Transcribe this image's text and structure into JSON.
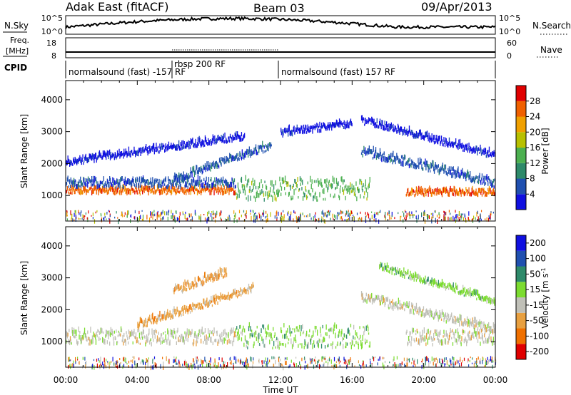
{
  "header": {
    "station": "Adak East (fitACF)",
    "beam": "Beam 03",
    "date": "09/Apr/2013"
  },
  "noise_panel": {
    "left_label": "N.Sky",
    "right_label": "N.Search",
    "left_ticks": [
      "10^5",
      "10^0"
    ],
    "right_ticks": [
      "10^5",
      "10^0"
    ]
  },
  "freq_panel": {
    "left_label_line1": "Freq.",
    "left_label_line2": "[MHz]",
    "right_label": "Nave",
    "left_ticks": [
      "18",
      "8"
    ],
    "right_ticks": [
      "60",
      "0"
    ],
    "cpid_label": "CPID"
  },
  "cpid_segments": [
    {
      "label": "normalsound (fast) -157 RF",
      "start": 0,
      "end": 6
    },
    {
      "label": "rbsp 200 RF",
      "start": 6,
      "end": 12
    },
    {
      "label": "normalsound (fast) 157 RF",
      "start": 12,
      "end": 24
    }
  ],
  "colors": {
    "power_scale": [
      "#1010e0",
      "#2050b0",
      "#2e8a6a",
      "#4cb050",
      "#b8c000",
      "#f0a000",
      "#f06000",
      "#e00000"
    ],
    "velocity_scale": [
      "#1010e0",
      "#2050b0",
      "#2e8a6a",
      "#7cdc30",
      "#c0c0b8",
      "#e8a040",
      "#f07000",
      "#e00000"
    ]
  },
  "chart_data": [
    {
      "type": "heatmap",
      "name": "power",
      "ylabel": "Slant Range [km]",
      "yticks": [
        1000,
        2000,
        3000,
        4000
      ],
      "ylim": [
        200,
        4600
      ],
      "xlim": [
        0,
        24
      ],
      "colorbar_label": "Power [dB]",
      "colorbar_ticks": [
        "4",
        "8",
        "12",
        "16",
        "20",
        "24",
        "28"
      ],
      "bands": [
        {
          "from": 0,
          "to": 9.5,
          "range_start": [
            1000,
            1000
          ],
          "width": 200,
          "level": 6
        },
        {
          "from": 0,
          "to": 9.5,
          "range_start": [
            1200,
            1200
          ],
          "width": 260,
          "level": 1
        },
        {
          "from": 0,
          "to": 10,
          "range_start": [
            1880,
            2700
          ],
          "width": 200,
          "level": 0
        },
        {
          "from": 6,
          "to": 11.5,
          "range_start": [
            1350,
            2400
          ],
          "width": 220,
          "level": 1
        },
        {
          "from": 9.5,
          "to": 17,
          "range_start": [
            800,
            800
          ],
          "width": 650,
          "level": 3
        },
        {
          "from": 12,
          "to": 16,
          "range_start": [
            2800,
            3100
          ],
          "width": 200,
          "level": 0
        },
        {
          "from": 16.5,
          "to": 24,
          "range_start": [
            2200,
            1200
          ],
          "width": 260,
          "level": 1
        },
        {
          "from": 16.5,
          "to": 24,
          "range_start": [
            3200,
            2100
          ],
          "width": 200,
          "level": 0
        },
        {
          "from": 19,
          "to": 24,
          "range_start": [
            950,
            950
          ],
          "width": 200,
          "level": 6
        }
      ]
    },
    {
      "type": "heatmap",
      "name": "velocity",
      "ylabel": "Slant Range [km]",
      "xlabel": "Time UT",
      "yticks": [
        1000,
        2000,
        3000,
        4000
      ],
      "ylim": [
        200,
        4600
      ],
      "xlim": [
        0,
        24
      ],
      "xticks": [
        "00:00",
        "04:00",
        "08:00",
        "12:00",
        "16:00",
        "20:00",
        "00:00"
      ],
      "colorbar_label": "Velocity [m s",
      "colorbar_exp": "-1",
      "colorbar_ticks": [
        "-200",
        "-100",
        "-50",
        "-15",
        "15",
        "50",
        "100",
        "200"
      ],
      "bands": [
        {
          "from": 0,
          "to": 9.5,
          "range_start": [
            850,
            850
          ],
          "width": 450,
          "level": 4
        },
        {
          "from": 4,
          "to": 10.5,
          "range_start": [
            1350,
            2500
          ],
          "width": 220,
          "level": 5
        },
        {
          "from": 6,
          "to": 9,
          "range_start": [
            2400,
            3000
          ],
          "width": 250,
          "level": 5
        },
        {
          "from": 9.5,
          "to": 17,
          "range_start": [
            750,
            750
          ],
          "width": 700,
          "level": 3
        },
        {
          "from": 16.5,
          "to": 24,
          "range_start": [
            2200,
            1200
          ],
          "width": 260,
          "level": 4
        },
        {
          "from": 17.5,
          "to": 24,
          "range_start": [
            3200,
            2100
          ],
          "width": 200,
          "level": 3
        },
        {
          "from": 19,
          "to": 24,
          "range_start": [
            850,
            850
          ],
          "width": 450,
          "level": 4
        }
      ]
    }
  ]
}
